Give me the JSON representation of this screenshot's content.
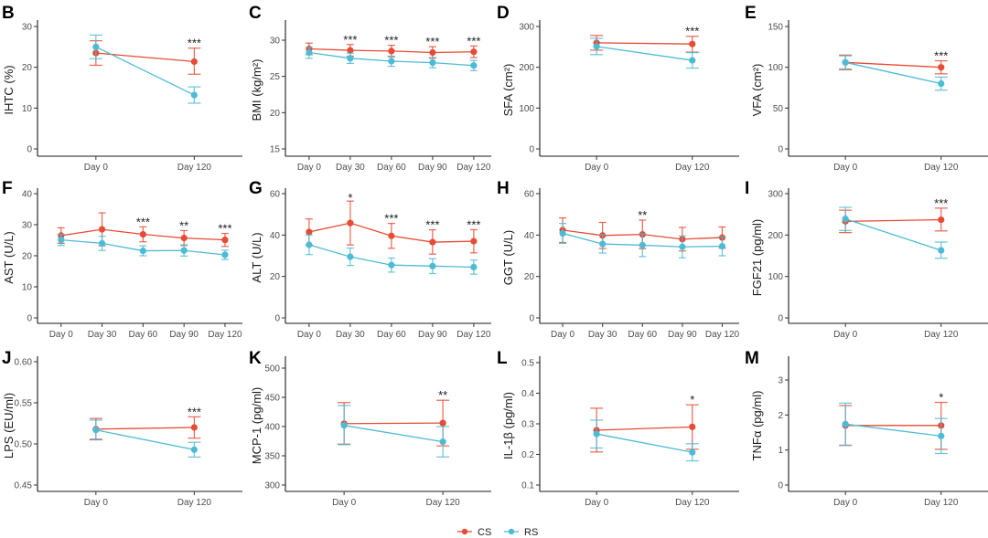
{
  "legend": {
    "items": [
      {
        "name": "CS",
        "color": "#E64B35"
      },
      {
        "name": "RS",
        "color": "#4DBBD5"
      }
    ],
    "placement": "bottom-center"
  },
  "chart_data": [
    {
      "panel": "B",
      "type": "line",
      "ylabel": "IHTC (%)",
      "x": [
        "Day 0",
        "Day 120"
      ],
      "ylim": [
        0,
        30
      ],
      "yticks": [
        0,
        10,
        20,
        30
      ],
      "ytick_labels": [
        "0",
        "10",
        "20",
        "30"
      ],
      "series": [
        {
          "name": "CS",
          "values": [
            23.5,
            21.4
          ],
          "err_low": [
            20.5,
            18.3
          ],
          "err_high": [
            26.5,
            24.7
          ]
        },
        {
          "name": "RS",
          "values": [
            25.0,
            13.2
          ],
          "err_low": [
            22.1,
            11.2
          ],
          "err_high": [
            27.9,
            15.2
          ]
        }
      ],
      "significance": [
        "",
        "***"
      ]
    },
    {
      "panel": "C",
      "type": "line",
      "ylabel": "BMI (kg/m²)",
      "x": [
        "Day 0",
        "Day 30",
        "Day 60",
        "Day 90",
        "Day 120"
      ],
      "ylim": [
        14.2,
        32.2
      ],
      "yticks": [
        15,
        20,
        25,
        30
      ],
      "ytick_labels": [
        "15",
        "20",
        "25",
        "30"
      ],
      "series": [
        {
          "name": "CS",
          "values": [
            28.8,
            28.6,
            28.5,
            28.3,
            28.4
          ],
          "err_low": [
            28.0,
            27.8,
            27.7,
            27.5,
            27.6
          ],
          "err_high": [
            29.6,
            29.4,
            29.3,
            29.1,
            29.2
          ]
        },
        {
          "name": "RS",
          "values": [
            28.3,
            27.5,
            27.1,
            26.9,
            26.5
          ],
          "err_low": [
            27.5,
            26.8,
            26.4,
            26.2,
            25.8
          ],
          "err_high": [
            29.0,
            28.2,
            27.8,
            27.6,
            27.2
          ]
        }
      ],
      "significance": [
        "",
        "***",
        "***",
        "***",
        "***"
      ]
    },
    {
      "panel": "D",
      "type": "line",
      "ylabel": "SFA (cm²)",
      "x": [
        "Day 0",
        "Day 120"
      ],
      "ylim": [
        0,
        300
      ],
      "yticks": [
        0,
        100,
        200,
        300
      ],
      "ytick_labels": [
        "0",
        "100",
        "200",
        "300"
      ],
      "series": [
        {
          "name": "CS",
          "values": [
            260,
            257
          ],
          "err_low": [
            242,
            237
          ],
          "err_high": [
            278,
            276
          ]
        },
        {
          "name": "RS",
          "values": [
            251,
            217
          ],
          "err_low": [
            231,
            198
          ],
          "err_high": [
            271,
            236
          ]
        }
      ],
      "significance": [
        "",
        "***"
      ]
    },
    {
      "panel": "E",
      "type": "line",
      "ylabel": "VFA (cm²)",
      "x": [
        "Day 0",
        "Day 120"
      ],
      "ylim": [
        0,
        150
      ],
      "yticks": [
        0,
        50,
        100,
        150
      ],
      "ytick_labels": [
        "0",
        "50",
        "100",
        "150"
      ],
      "series": [
        {
          "name": "CS",
          "values": [
            106,
            100
          ],
          "err_low": [
            97,
            92
          ],
          "err_high": [
            115,
            108
          ]
        },
        {
          "name": "RS",
          "values": [
            106,
            80
          ],
          "err_low": [
            98,
            72
          ],
          "err_high": [
            114,
            88
          ]
        }
      ],
      "significance": [
        "",
        "***"
      ]
    },
    {
      "panel": "F",
      "type": "line",
      "ylabel": "AST (U/L)",
      "x": [
        "Day 0",
        "Day 30",
        "Day 60",
        "Day 90",
        "Day 120"
      ],
      "ylim": [
        0,
        40
      ],
      "yticks": [
        0,
        10,
        20,
        30,
        40
      ],
      "ytick_labels": [
        "0",
        "10",
        "20",
        "30",
        "40"
      ],
      "series": [
        {
          "name": "CS",
          "values": [
            26.5,
            28.5,
            26.9,
            25.7,
            25.1
          ],
          "err_low": [
            24.0,
            23.2,
            24.5,
            23.3,
            23.0
          ],
          "err_high": [
            29.0,
            33.8,
            29.3,
            28.1,
            27.2
          ]
        },
        {
          "name": "RS",
          "values": [
            25.1,
            24.0,
            21.6,
            21.7,
            20.3
          ],
          "err_low": [
            23.3,
            21.7,
            20.0,
            19.9,
            18.8
          ],
          "err_high": [
            26.9,
            26.3,
            23.2,
            23.5,
            21.8
          ]
        }
      ],
      "significance": [
        "",
        "",
        "***",
        "**",
        "***"
      ]
    },
    {
      "panel": "G",
      "type": "line",
      "ylabel": "ALT (U/L)",
      "x": [
        "Day 0",
        "Day 30",
        "Day 60",
        "Day 90",
        "Day 120"
      ],
      "ylim": [
        0,
        60
      ],
      "yticks": [
        0,
        20,
        40,
        60
      ],
      "ytick_labels": [
        "0",
        "20",
        "40",
        "60"
      ],
      "series": [
        {
          "name": "CS",
          "values": [
            41.5,
            45.8,
            39.6,
            36.6,
            37.0
          ],
          "err_low": [
            35.2,
            35.2,
            33.6,
            30.8,
            31.4
          ],
          "err_high": [
            47.8,
            56.4,
            45.6,
            42.5,
            42.6
          ]
        },
        {
          "name": "RS",
          "values": [
            35.3,
            29.5,
            25.5,
            25.0,
            24.5
          ],
          "err_low": [
            30.6,
            25.3,
            22.1,
            21.4,
            21.1
          ],
          "err_high": [
            40.0,
            33.7,
            28.9,
            28.6,
            27.9
          ]
        }
      ],
      "significance": [
        "",
        "*",
        "***",
        "***",
        "***"
      ]
    },
    {
      "panel": "H",
      "type": "line",
      "ylabel": "GGT (U/L)",
      "x": [
        "Day 0",
        "Day 30",
        "Day 60",
        "Day 90",
        "Day 120"
      ],
      "ylim": [
        0,
        60
      ],
      "yticks": [
        0,
        20,
        40,
        60
      ],
      "ytick_labels": [
        "0",
        "20",
        "40",
        "60"
      ],
      "series": [
        {
          "name": "CS",
          "values": [
            42.4,
            39.8,
            40.3,
            38.0,
            38.8
          ],
          "err_low": [
            36.4,
            33.5,
            33.4,
            32.3,
            33.7
          ],
          "err_high": [
            48.3,
            46.1,
            47.2,
            43.7,
            43.9
          ]
        },
        {
          "name": "RS",
          "values": [
            40.8,
            35.7,
            35.1,
            34.3,
            34.6
          ],
          "err_low": [
            36.0,
            31.3,
            29.6,
            29.0,
            30.0
          ],
          "err_high": [
            45.6,
            40.1,
            40.6,
            39.6,
            39.2
          ]
        }
      ],
      "significance": [
        "",
        "",
        "**",
        "",
        ""
      ]
    },
    {
      "panel": "I",
      "type": "line",
      "ylabel": "FGF21 (pg/ml)",
      "x": [
        "Day 0",
        "Day 120"
      ],
      "ylim": [
        0,
        300
      ],
      "yticks": [
        0,
        100,
        200,
        300
      ],
      "ytick_labels": [
        "0",
        "100",
        "200",
        "300"
      ],
      "series": [
        {
          "name": "CS",
          "values": [
            233,
            237
          ],
          "err_low": [
            206,
            210
          ],
          "err_high": [
            260,
            265
          ]
        },
        {
          "name": "RS",
          "values": [
            239,
            163
          ],
          "err_low": [
            211,
            144
          ],
          "err_high": [
            267,
            183
          ]
        }
      ],
      "significance": [
        "",
        "***"
      ]
    },
    {
      "panel": "J",
      "type": "line",
      "ylabel": "LPS (EU/ml)",
      "x": [
        "Day 0",
        "Day 120"
      ],
      "ylim": [
        0.445,
        0.605
      ],
      "yticks": [
        0.45,
        0.5,
        0.55,
        0.6
      ],
      "ytick_labels": [
        "0.45",
        "0.50",
        "0.55",
        "0.60"
      ],
      "series": [
        {
          "name": "CS",
          "values": [
            0.518,
            0.52
          ],
          "err_low": [
            0.505,
            0.507
          ],
          "err_high": [
            0.531,
            0.533
          ]
        },
        {
          "name": "RS",
          "values": [
            0.517,
            0.493
          ],
          "err_low": [
            0.506,
            0.484
          ],
          "err_high": [
            0.529,
            0.502
          ]
        }
      ],
      "significance": [
        "",
        "***"
      ]
    },
    {
      "panel": "K",
      "type": "line",
      "ylabel": "MCP-1 (pg/ml)",
      "x": [
        "Day 0",
        "Day 120"
      ],
      "ylim": [
        290,
        510
      ],
      "yticks": [
        300,
        350,
        400,
        450,
        500
      ],
      "ytick_labels": [
        "300",
        "350",
        "400",
        "450",
        "500"
      ],
      "series": [
        {
          "name": "CS",
          "values": [
            405,
            406
          ],
          "err_low": [
            370,
            367
          ],
          "err_high": [
            441,
            445
          ]
        },
        {
          "name": "RS",
          "values": [
            402,
            374
          ],
          "err_low": [
            369,
            348
          ],
          "err_high": [
            436,
            400
          ]
        }
      ],
      "significance": [
        "",
        "**"
      ]
    },
    {
      "panel": "L",
      "type": "line",
      "ylabel": "IL-1β (pg/ml)",
      "x": [
        "Day 0",
        "Day 120"
      ],
      "ylim": [
        0.08,
        0.52
      ],
      "yticks": [
        0.1,
        0.2,
        0.3,
        0.4,
        0.5
      ],
      "ytick_labels": [
        "0.1",
        "0.2",
        "0.3",
        "0.4",
        "0.5"
      ],
      "series": [
        {
          "name": "CS",
          "values": [
            0.279,
            0.29
          ],
          "err_low": [
            0.208,
            0.217
          ],
          "err_high": [
            0.351,
            0.362
          ]
        },
        {
          "name": "RS",
          "values": [
            0.267,
            0.207
          ],
          "err_low": [
            0.221,
            0.179
          ],
          "err_high": [
            0.312,
            0.235
          ]
        }
      ],
      "significance": [
        "",
        "*"
      ]
    },
    {
      "panel": "M",
      "type": "line",
      "ylabel": "TNFα (pg/ml)",
      "x": [
        "Day 0",
        "Day 120"
      ],
      "ylim": [
        -0.18,
        3.65
      ],
      "yticks": [
        0,
        1,
        2,
        3
      ],
      "ytick_labels": [
        "0",
        "1",
        "2",
        "3"
      ],
      "series": [
        {
          "name": "CS",
          "values": [
            1.7,
            1.7
          ],
          "err_low": [
            1.13,
            1.02
          ],
          "err_high": [
            2.27,
            2.36
          ]
        },
        {
          "name": "RS",
          "values": [
            1.74,
            1.4
          ],
          "err_low": [
            1.14,
            0.9
          ],
          "err_high": [
            2.34,
            1.9
          ]
        }
      ],
      "significance": [
        "",
        "*"
      ]
    }
  ]
}
